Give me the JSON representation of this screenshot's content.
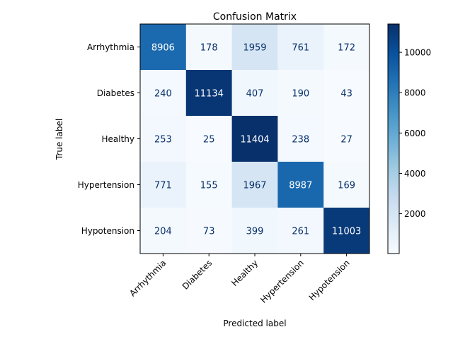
{
  "chart_data": {
    "type": "heatmap",
    "title": "Confusion Matrix",
    "xlabel": "Predicted label",
    "ylabel": "True label",
    "x_categories": [
      "Arrhythmia",
      "Diabetes",
      "Healthy",
      "Hypertension",
      "Hypotension"
    ],
    "y_categories": [
      "Arrhythmia",
      "Diabetes",
      "Healthy",
      "Hypertension",
      "Hypotension"
    ],
    "values": [
      [
        8906,
        178,
        1959,
        761,
        172
      ],
      [
        240,
        11134,
        407,
        190,
        43
      ],
      [
        253,
        25,
        11404,
        238,
        27
      ],
      [
        771,
        155,
        1967,
        8987,
        169
      ],
      [
        204,
        73,
        399,
        261,
        11003
      ]
    ],
    "colormap": "Blues",
    "colorbar": {
      "min": 25,
      "max": 11404,
      "ticks": [
        2000,
        4000,
        6000,
        8000,
        10000
      ]
    },
    "grid": false
  }
}
